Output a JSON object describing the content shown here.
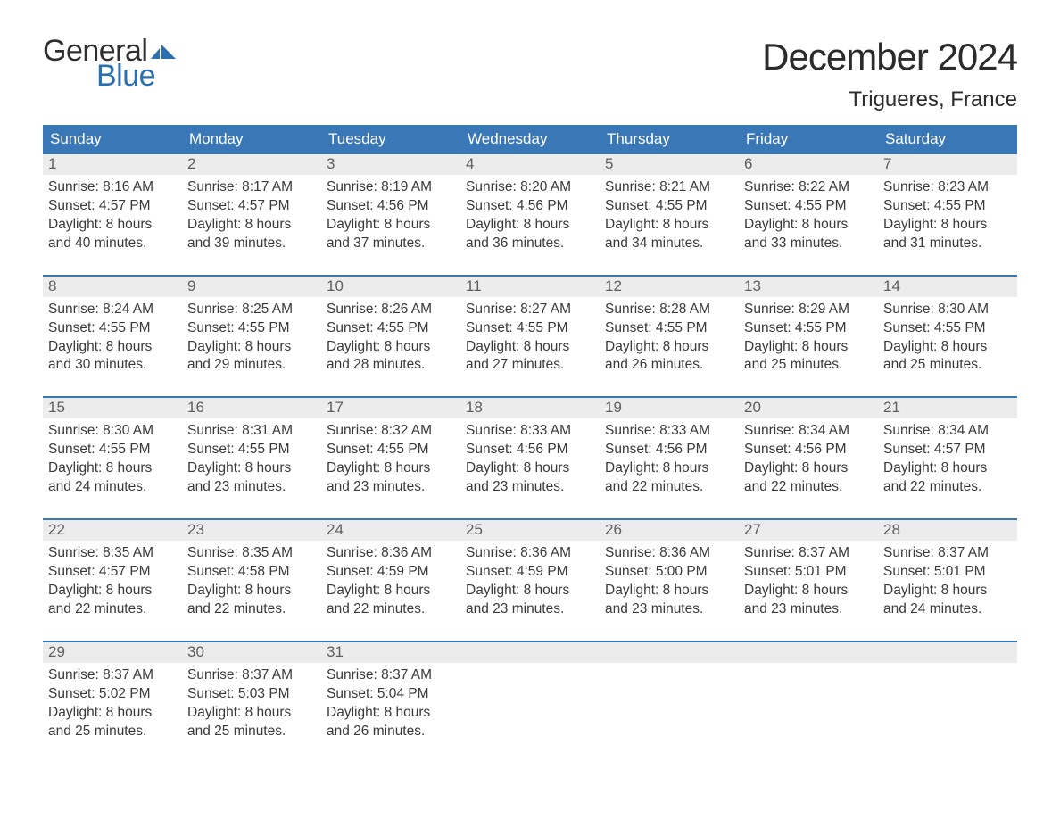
{
  "logo": {
    "text1": "General",
    "text2": "Blue",
    "flag_color": "#2a6fb0"
  },
  "title": "December 2024",
  "location": "Trigueres, France",
  "colors": {
    "header_bg": "#3a77b6",
    "header_text": "#ffffff",
    "daynum_bg": "#ececec",
    "daynum_text": "#5f5f5f",
    "body_text": "#3a3a3a",
    "week_border": "#3a77b6",
    "page_bg": "#ffffff"
  },
  "fonts": {
    "title_size_pt": 32,
    "location_size_pt": 18,
    "header_size_pt": 13,
    "daynum_size_pt": 13,
    "body_size_pt": 12
  },
  "weekday_labels": [
    "Sunday",
    "Monday",
    "Tuesday",
    "Wednesday",
    "Thursday",
    "Friday",
    "Saturday"
  ],
  "weeks": [
    [
      {
        "n": "1",
        "sunrise": "8:16 AM",
        "sunset": "4:57 PM",
        "daylight": "8 hours and 40 minutes."
      },
      {
        "n": "2",
        "sunrise": "8:17 AM",
        "sunset": "4:57 PM",
        "daylight": "8 hours and 39 minutes."
      },
      {
        "n": "3",
        "sunrise": "8:19 AM",
        "sunset": "4:56 PM",
        "daylight": "8 hours and 37 minutes."
      },
      {
        "n": "4",
        "sunrise": "8:20 AM",
        "sunset": "4:56 PM",
        "daylight": "8 hours and 36 minutes."
      },
      {
        "n": "5",
        "sunrise": "8:21 AM",
        "sunset": "4:55 PM",
        "daylight": "8 hours and 34 minutes."
      },
      {
        "n": "6",
        "sunrise": "8:22 AM",
        "sunset": "4:55 PM",
        "daylight": "8 hours and 33 minutes."
      },
      {
        "n": "7",
        "sunrise": "8:23 AM",
        "sunset": "4:55 PM",
        "daylight": "8 hours and 31 minutes."
      }
    ],
    [
      {
        "n": "8",
        "sunrise": "8:24 AM",
        "sunset": "4:55 PM",
        "daylight": "8 hours and 30 minutes."
      },
      {
        "n": "9",
        "sunrise": "8:25 AM",
        "sunset": "4:55 PM",
        "daylight": "8 hours and 29 minutes."
      },
      {
        "n": "10",
        "sunrise": "8:26 AM",
        "sunset": "4:55 PM",
        "daylight": "8 hours and 28 minutes."
      },
      {
        "n": "11",
        "sunrise": "8:27 AM",
        "sunset": "4:55 PM",
        "daylight": "8 hours and 27 minutes."
      },
      {
        "n": "12",
        "sunrise": "8:28 AM",
        "sunset": "4:55 PM",
        "daylight": "8 hours and 26 minutes."
      },
      {
        "n": "13",
        "sunrise": "8:29 AM",
        "sunset": "4:55 PM",
        "daylight": "8 hours and 25 minutes."
      },
      {
        "n": "14",
        "sunrise": "8:30 AM",
        "sunset": "4:55 PM",
        "daylight": "8 hours and 25 minutes."
      }
    ],
    [
      {
        "n": "15",
        "sunrise": "8:30 AM",
        "sunset": "4:55 PM",
        "daylight": "8 hours and 24 minutes."
      },
      {
        "n": "16",
        "sunrise": "8:31 AM",
        "sunset": "4:55 PM",
        "daylight": "8 hours and 23 minutes."
      },
      {
        "n": "17",
        "sunrise": "8:32 AM",
        "sunset": "4:55 PM",
        "daylight": "8 hours and 23 minutes."
      },
      {
        "n": "18",
        "sunrise": "8:33 AM",
        "sunset": "4:56 PM",
        "daylight": "8 hours and 23 minutes."
      },
      {
        "n": "19",
        "sunrise": "8:33 AM",
        "sunset": "4:56 PM",
        "daylight": "8 hours and 22 minutes."
      },
      {
        "n": "20",
        "sunrise": "8:34 AM",
        "sunset": "4:56 PM",
        "daylight": "8 hours and 22 minutes."
      },
      {
        "n": "21",
        "sunrise": "8:34 AM",
        "sunset": "4:57 PM",
        "daylight": "8 hours and 22 minutes."
      }
    ],
    [
      {
        "n": "22",
        "sunrise": "8:35 AM",
        "sunset": "4:57 PM",
        "daylight": "8 hours and 22 minutes."
      },
      {
        "n": "23",
        "sunrise": "8:35 AM",
        "sunset": "4:58 PM",
        "daylight": "8 hours and 22 minutes."
      },
      {
        "n": "24",
        "sunrise": "8:36 AM",
        "sunset": "4:59 PM",
        "daylight": "8 hours and 22 minutes."
      },
      {
        "n": "25",
        "sunrise": "8:36 AM",
        "sunset": "4:59 PM",
        "daylight": "8 hours and 23 minutes."
      },
      {
        "n": "26",
        "sunrise": "8:36 AM",
        "sunset": "5:00 PM",
        "daylight": "8 hours and 23 minutes."
      },
      {
        "n": "27",
        "sunrise": "8:37 AM",
        "sunset": "5:01 PM",
        "daylight": "8 hours and 23 minutes."
      },
      {
        "n": "28",
        "sunrise": "8:37 AM",
        "sunset": "5:01 PM",
        "daylight": "8 hours and 24 minutes."
      }
    ],
    [
      {
        "n": "29",
        "sunrise": "8:37 AM",
        "sunset": "5:02 PM",
        "daylight": "8 hours and 25 minutes."
      },
      {
        "n": "30",
        "sunrise": "8:37 AM",
        "sunset": "5:03 PM",
        "daylight": "8 hours and 25 minutes."
      },
      {
        "n": "31",
        "sunrise": "8:37 AM",
        "sunset": "5:04 PM",
        "daylight": "8 hours and 26 minutes."
      },
      {
        "empty": true
      },
      {
        "empty": true
      },
      {
        "empty": true
      },
      {
        "empty": true
      }
    ]
  ],
  "labels": {
    "sunrise_prefix": "Sunrise: ",
    "sunset_prefix": "Sunset: ",
    "daylight_prefix": "Daylight: "
  }
}
